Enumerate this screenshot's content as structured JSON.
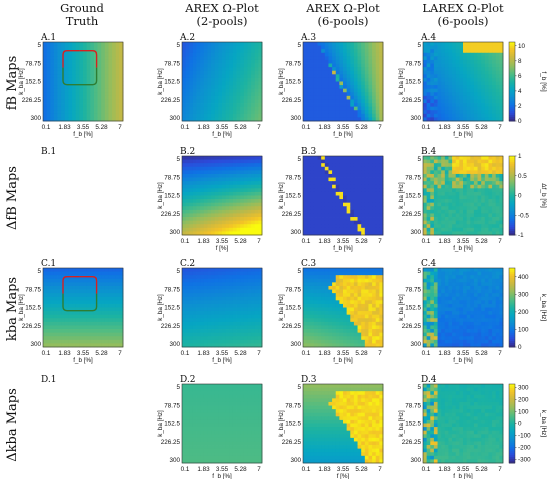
{
  "colors": {
    "parula": [
      "#352a87",
      "#2c4bdb",
      "#0f72e4",
      "#0d8fd1",
      "#06a6c2",
      "#1db3a1",
      "#53bc81",
      "#95bd5c",
      "#c9b842",
      "#f2c228",
      "#f9fb0e"
    ],
    "box_red": "#d62020",
    "box_green": "#2e7d32"
  },
  "columns": [
    {
      "line1": "Ground",
      "line2": "Truth"
    },
    {
      "line1": "AREX Ω-Plot",
      "line2": "(2-pools)"
    },
    {
      "line1": "AREX Ω-Plot",
      "line2": "(6-pools)"
    },
    {
      "line1": "LAREX Ω-Plot",
      "line2": "(6-pools)"
    }
  ],
  "rows": [
    {
      "label": "fB Maps"
    },
    {
      "label": "ΔfB Maps"
    },
    {
      "label": "kba Maps"
    },
    {
      "label": "Δkba Maps"
    }
  ],
  "chart_data": {
    "type": "heatmap",
    "axes": {
      "xlabel": "f_b [%]",
      "xlabel_alt": "f [%]",
      "ylabel": "k_ba [Hz]",
      "xticks": [
        "0.1",
        "1.83",
        "3.55",
        "5.28",
        "7"
      ],
      "yticks": [
        "5",
        "78.75",
        "152.5",
        "226.25",
        "300"
      ],
      "xlim": [
        0.1,
        7
      ],
      "ylim": [
        5,
        300
      ]
    },
    "panels": [
      {
        "id": "A.1",
        "pattern": "gt_f",
        "box": true,
        "xlabel": "f_b [%]"
      },
      {
        "id": "A.2",
        "pattern": "arex2_f",
        "xlabel": "f_b [%]"
      },
      {
        "id": "A.3",
        "pattern": "arex6_f",
        "xlabel": "f_b [%]"
      },
      {
        "id": "A.4",
        "pattern": "larex_f",
        "xlabel": "f_b [%]"
      },
      {
        "id": "B.1",
        "empty": true
      },
      {
        "id": "B.2",
        "pattern": "arex2_df",
        "xlabel": "f [%]"
      },
      {
        "id": "B.3",
        "pattern": "arex6_df",
        "xlabel": "f_b [%]"
      },
      {
        "id": "B.4",
        "pattern": "larex_df",
        "xlabel": "f_b [%]"
      },
      {
        "id": "C.1",
        "pattern": "gt_k",
        "box": true,
        "xlabel": "f_b [%]"
      },
      {
        "id": "C.2",
        "pattern": "arex2_k",
        "xlabel": "f_b [%]"
      },
      {
        "id": "C.3",
        "pattern": "arex6_k",
        "xlabel": "f_b [%]"
      },
      {
        "id": "C.4",
        "pattern": "larex_k",
        "xlabel": "f_b [%]"
      },
      {
        "id": "D.1",
        "empty": true
      },
      {
        "id": "D.2",
        "pattern": "arex2_dk",
        "xlabel": "f_b [%]"
      },
      {
        "id": "D.3",
        "pattern": "arex6_dk",
        "xlabel": "f [%]"
      },
      {
        "id": "D.4",
        "pattern": "larex_dk",
        "xlabel": "f_b [%]"
      }
    ],
    "colorbars": [
      {
        "row": "A",
        "label": "f_b [%]",
        "ticks": [
          "0",
          "2",
          "4",
          "6",
          "8",
          "10"
        ],
        "range": [
          0,
          10.5
        ]
      },
      {
        "row": "B",
        "label": "Δf_b [%]",
        "ticks": [
          "-1",
          "-0.5",
          "0",
          "0.5",
          "1"
        ],
        "range": [
          -1,
          1
        ]
      },
      {
        "row": "C",
        "label": "k_ba [Hz]",
        "ticks": [
          "0",
          "100",
          "200",
          "300",
          "400"
        ],
        "range": [
          0,
          450
        ]
      },
      {
        "row": "D",
        "label": "k_ba [Hz]",
        "ticks": [
          "-300",
          "-200",
          "-100",
          "0",
          "100",
          "200",
          "300"
        ],
        "range": [
          -330,
          330
        ]
      }
    ]
  }
}
